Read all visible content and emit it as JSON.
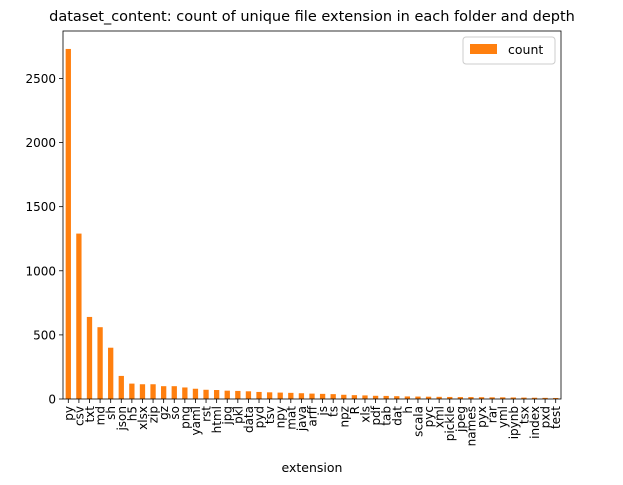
{
  "chart_data": {
    "type": "bar",
    "title": "dataset_content: count of unique file extension in each folder and depth",
    "xlabel": "extension",
    "ylabel": "",
    "ylim": [
      0,
      2870
    ],
    "yticks": [
      0,
      500,
      1000,
      1500,
      2000,
      2500
    ],
    "grid": false,
    "legend_position": "top-right",
    "bar_color": "#ff7f0e",
    "categories": [
      "py",
      "csv",
      "txt",
      "md",
      "sh",
      "json",
      "h5",
      "xlsx",
      "zip",
      "gz",
      "so",
      "png",
      "yaml",
      "rst",
      "html",
      "jpg",
      "pkl",
      "data",
      "pyd",
      "tsv",
      "npy",
      "mat",
      "java",
      "arff",
      "js",
      "ts",
      "npz",
      "R",
      "xls",
      "pdf",
      "tab",
      "dat",
      "h",
      "scala",
      "pyc",
      "xml",
      "pickle",
      "jpeg",
      "names",
      "pyx",
      "rar",
      "yml",
      "ipynb",
      "tsx",
      "index",
      "pxd",
      "test"
    ],
    "series": [
      {
        "name": "count",
        "values": [
          2730,
          1290,
          640,
          560,
          400,
          180,
          120,
          115,
          115,
          100,
          100,
          90,
          80,
          72,
          70,
          65,
          63,
          60,
          55,
          52,
          50,
          48,
          45,
          42,
          40,
          38,
          33,
          30,
          28,
          25,
          24,
          22,
          20,
          19,
          18,
          17,
          16,
          15,
          15,
          14,
          13,
          13,
          12,
          11,
          10,
          9,
          8
        ]
      }
    ]
  }
}
